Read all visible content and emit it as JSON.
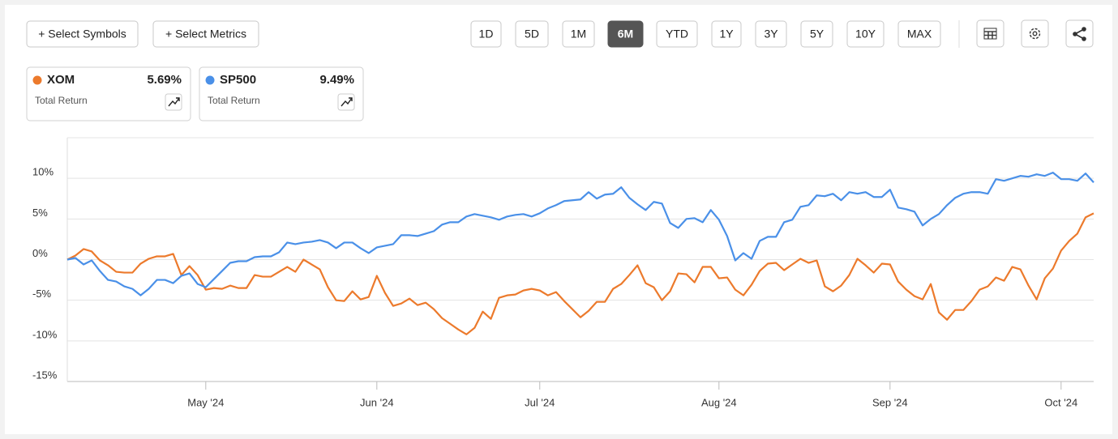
{
  "toolbar": {
    "buttons": [
      "+ Select Symbols",
      "+ Select Metrics"
    ],
    "ranges": [
      "1D",
      "5D",
      "1M",
      "6M",
      "YTD",
      "1Y",
      "3Y",
      "5Y",
      "10Y",
      "MAX"
    ],
    "active_range": "6M"
  },
  "chart_data": {
    "type": "line",
    "legend_caption": "Total Return",
    "xlim": [
      0,
      126
    ],
    "xticks": [
      {
        "value": 17,
        "label": "May '24"
      },
      {
        "value": 38,
        "label": "Jun '24"
      },
      {
        "value": 58,
        "label": "Jul '24"
      },
      {
        "value": 80,
        "label": "Aug '24"
      },
      {
        "value": 101,
        "label": "Sep '24"
      },
      {
        "value": 122,
        "label": "Oct '24"
      }
    ],
    "ylim": [
      -15,
      15
    ],
    "yticks": [
      {
        "value": -15,
        "label": "-15%"
      },
      {
        "value": -10,
        "label": "-10%"
      },
      {
        "value": -5,
        "label": "-5%"
      },
      {
        "value": 0,
        "label": "0%"
      },
      {
        "value": 5,
        "label": "5%"
      },
      {
        "value": 10,
        "label": "10%"
      }
    ],
    "grid": true,
    "series": [
      {
        "name": "XOM",
        "color": "#ec7a2c",
        "total_return_label": "5.69%",
        "values": [
          0,
          0.5,
          1.3,
          1.0,
          -0.1,
          -0.7,
          -1.5,
          -1.6,
          -1.6,
          -0.5,
          0.1,
          0.4,
          0.4,
          0.7,
          -1.9,
          -0.8,
          -1.9,
          -3.7,
          -3.5,
          -3.6,
          -3.2,
          -3.5,
          -3.5,
          -1.9,
          -2.1,
          -2.1,
          -1.5,
          -0.9,
          -1.5,
          0,
          -0.6,
          -1.2,
          -3.4,
          -5.0,
          -5.1,
          -3.9,
          -4.9,
          -4.6,
          -2.0,
          -4.1,
          -5.7,
          -5.4,
          -4.8,
          -5.6,
          -5.3,
          -6.1,
          -7.2,
          -7.9,
          -8.6,
          -9.2,
          -8.4,
          -6.4,
          -7.3,
          -4.7,
          -4.4,
          -4.3,
          -3.8,
          -3.6,
          -3.8,
          -4.4,
          -4.0,
          -5.1,
          -6.1,
          -7.1,
          -6.3,
          -5.2,
          -5.2,
          -3.6,
          -3.0,
          -1.9,
          -0.7,
          -2.9,
          -3.4,
          -5.0,
          -3.9,
          -1.7,
          -1.8,
          -2.8,
          -0.9,
          -0.9,
          -2.3,
          -2.2,
          -3.7,
          -4.4,
          -3.1,
          -1.4,
          -0.5,
          -0.4,
          -1.3,
          -0.6,
          0.1,
          -0.4,
          -0.1,
          -3.3,
          -3.9,
          -3.2,
          -1.9,
          0.1,
          -0.7,
          -1.6,
          -0.5,
          -0.6,
          -2.7,
          -3.7,
          -4.5,
          -4.9,
          -3.0,
          -6.5,
          -7.4,
          -6.2,
          -6.2,
          -5.1,
          -3.7,
          -3.3,
          -2.2,
          -2.6,
          -0.9,
          -1.2,
          -3.2,
          -4.9,
          -2.3,
          -1.1,
          1.1,
          2.3,
          3.2,
          5.2,
          5.69
        ]
      },
      {
        "name": "SP500",
        "color": "#4a90e8",
        "total_return_label": "9.49%",
        "values": [
          0,
          0.2,
          -0.6,
          -0.1,
          -1.4,
          -2.5,
          -2.7,
          -3.3,
          -3.6,
          -4.4,
          -3.6,
          -2.5,
          -2.5,
          -2.9,
          -2.0,
          -1.7,
          -3.0,
          -3.4,
          -2.4,
          -1.4,
          -0.4,
          -0.2,
          -0.2,
          0.3,
          0.4,
          0.4,
          0.9,
          2.1,
          1.9,
          2.1,
          2.2,
          2.4,
          2.1,
          1.4,
          2.1,
          2.1,
          1.4,
          0.8,
          1.5,
          1.7,
          1.9,
          3.0,
          3.0,
          2.9,
          3.2,
          3.5,
          4.3,
          4.6,
          4.6,
          5.3,
          5.6,
          5.4,
          5.2,
          4.9,
          5.3,
          5.5,
          5.6,
          5.3,
          5.7,
          6.3,
          6.7,
          7.2,
          7.3,
          7.4,
          8.3,
          7.5,
          8.0,
          8.1,
          8.9,
          7.6,
          6.8,
          6.1,
          7.1,
          6.9,
          4.5,
          3.9,
          5.0,
          5.1,
          4.6,
          6.1,
          4.9,
          2.9,
          -0.1,
          0.8,
          0.1,
          2.3,
          2.8,
          2.8,
          4.6,
          4.9,
          6.5,
          6.7,
          7.9,
          7.8,
          8.1,
          7.3,
          8.3,
          8.1,
          8.3,
          7.7,
          7.7,
          8.6,
          6.4,
          6.2,
          5.9,
          4.2,
          5.0,
          5.6,
          6.7,
          7.6,
          8.1,
          8.3,
          8.3,
          8.1,
          9.9,
          9.7,
          10.0,
          10.3,
          10.2,
          10.5,
          10.3,
          10.7,
          9.9,
          9.9,
          9.7,
          10.6,
          9.49
        ]
      }
    ]
  }
}
